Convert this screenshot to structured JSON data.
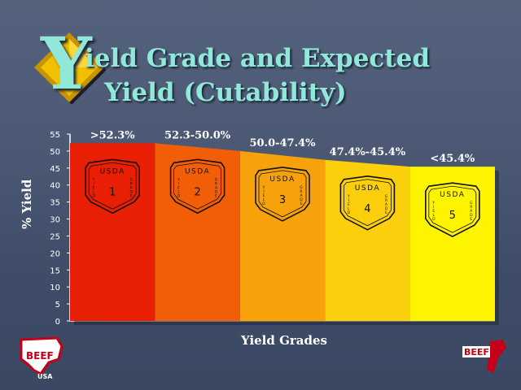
{
  "title": {
    "initial": "Y",
    "line1": "ield Grade and Expected",
    "line2": "Yield (Cutability)"
  },
  "colors": {
    "title": "#8fe8d8",
    "background": "#4b5874",
    "grade_fills": [
      "#e81e05",
      "#f25e07",
      "#f7a20a",
      "#fbcf0b",
      "#fff400"
    ]
  },
  "chart_data": {
    "type": "area",
    "ylabel": "% Yield",
    "xlabel": "Yield Grades",
    "ylim": [
      0,
      55
    ],
    "yticks": [
      0,
      5,
      10,
      15,
      20,
      25,
      30,
      35,
      40,
      45,
      50,
      55
    ],
    "grades": [
      {
        "label": ">52.3%",
        "grade": "1",
        "top_start": 52.3,
        "top_end": 52.3
      },
      {
        "label": "52.3-50.0%",
        "grade": "2",
        "top_start": 52.3,
        "top_end": 50.0
      },
      {
        "label": "50.0-47.4%",
        "grade": "3",
        "top_start": 50.0,
        "top_end": 47.4
      },
      {
        "label": "47.4%-45.4%",
        "grade": "4",
        "top_start": 47.4,
        "top_end": 45.4
      },
      {
        "label": "<45.4%",
        "grade": "5",
        "top_start": 45.4,
        "top_end": 45.4
      }
    ],
    "shield": {
      "header": "USDA",
      "left_text": "YIELD",
      "right_text": "GRADE"
    }
  },
  "logos": {
    "left": {
      "main": "BEEF",
      "sub": "USA"
    },
    "right": {
      "main": "BEEF"
    }
  }
}
